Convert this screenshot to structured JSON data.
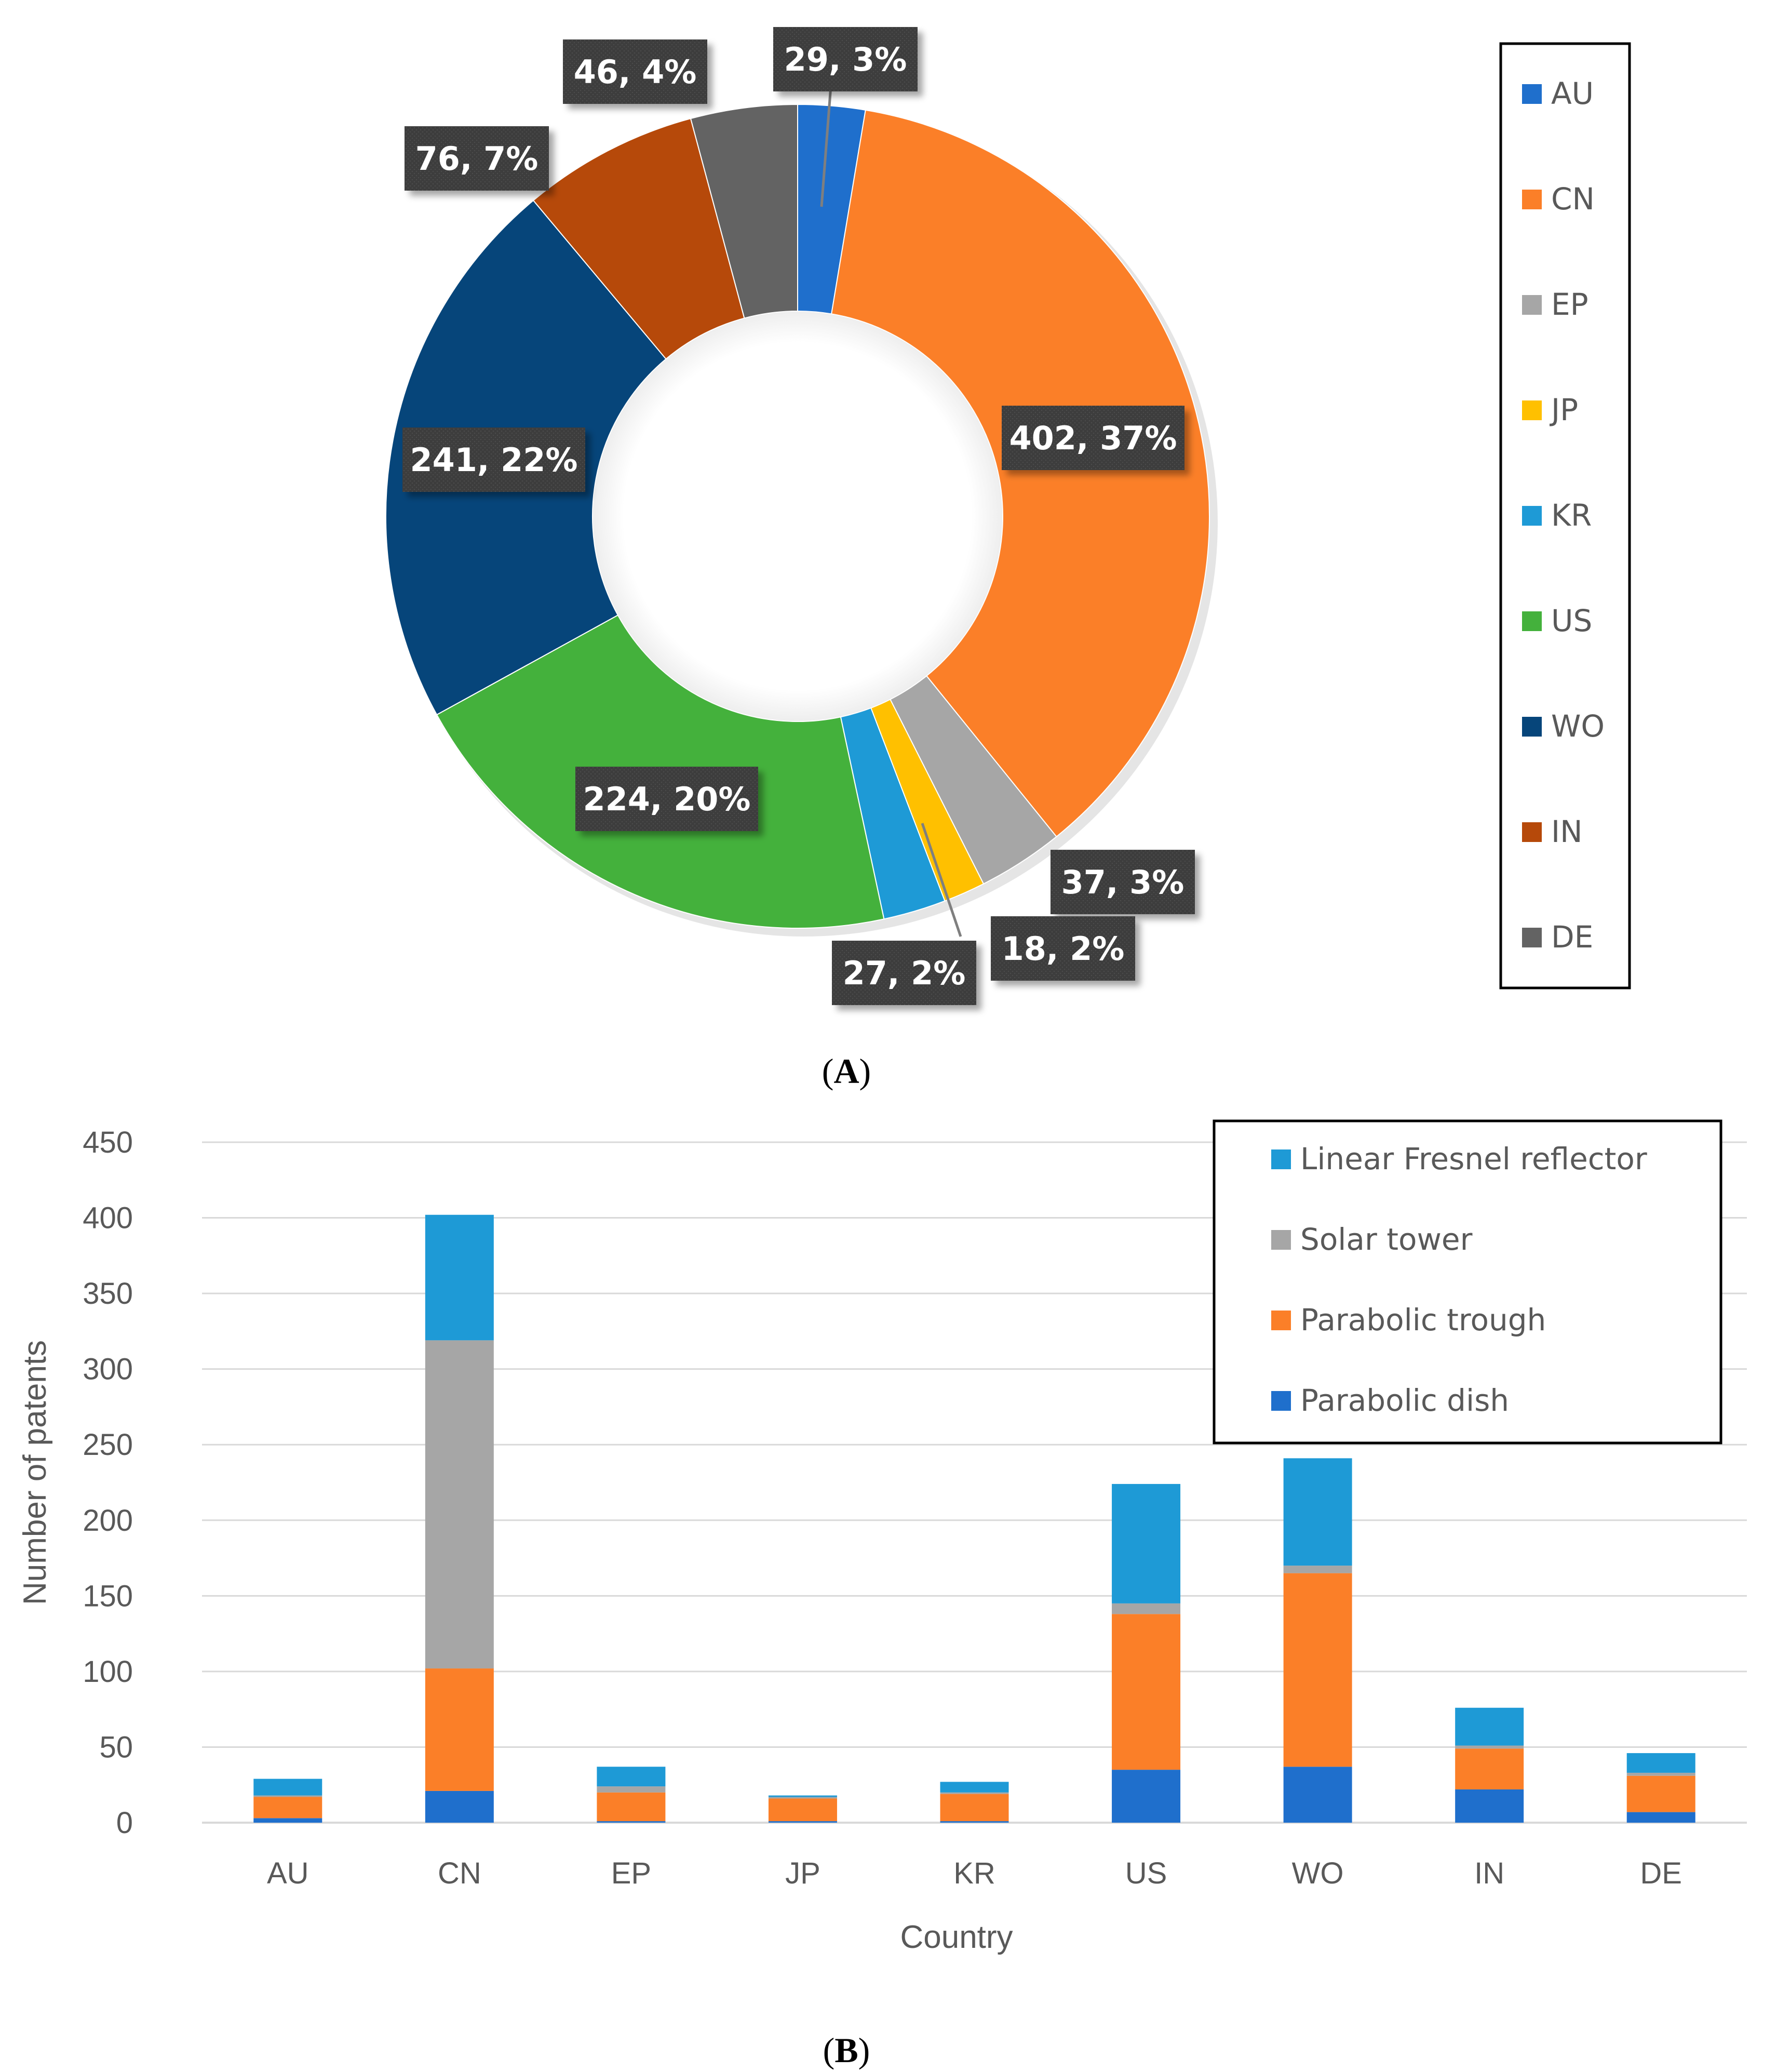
{
  "chart_data": [
    {
      "type": "pie",
      "variant": "donut",
      "panel_label": "A",
      "categories": [
        "AU",
        "CN",
        "EP",
        "JP",
        "KR",
        "US",
        "WO",
        "IN",
        "DE"
      ],
      "values": [
        29,
        402,
        37,
        18,
        27,
        224,
        241,
        76,
        46
      ],
      "percent_labels": [
        "3%",
        "37%",
        "3%",
        "2%",
        "2%",
        "20%",
        "22%",
        "7%",
        "4%"
      ],
      "data_labels": [
        "29, 3%",
        "402, 37%",
        "37, 3%",
        "18, 2%",
        "27, 2%",
        "224, 20%",
        "241, 22%",
        "76, 7%",
        "46, 4%"
      ],
      "colors": [
        "#1f6fcc",
        "#fb7f28",
        "#a6a6a6",
        "#ffc000",
        "#1e9ad6",
        "#44b13c",
        "#06457a",
        "#b6490a",
        "#636363"
      ],
      "legend_placement": "right"
    },
    {
      "type": "bar",
      "stacked": true,
      "panel_label": "B",
      "categories": [
        "AU",
        "CN",
        "EP",
        "JP",
        "KR",
        "US",
        "WO",
        "IN",
        "DE"
      ],
      "series": [
        {
          "name": "Parabolic dish",
          "color": "#1f6fcc",
          "values": [
            3,
            21,
            1,
            1,
            1,
            35,
            37,
            22,
            7
          ]
        },
        {
          "name": "Parabolic trough",
          "color": "#fb7f28",
          "values": [
            14,
            81,
            19,
            15,
            18,
            103,
            128,
            27,
            24
          ]
        },
        {
          "name": "Solar tower",
          "color": "#a6a6a6",
          "values": [
            1,
            217,
            4,
            1,
            1,
            7,
            5,
            2,
            2
          ]
        },
        {
          "name": "Linear Fresnel reflector",
          "color": "#1e9ad6",
          "values": [
            11,
            83,
            13,
            1,
            7,
            79,
            71,
            25,
            13
          ]
        }
      ],
      "legend_order": [
        "Linear Fresnel reflector",
        "Solar tower",
        "Parabolic trough",
        "Parabolic dish"
      ],
      "xlabel": "Country",
      "ylabel": "Number of patents",
      "ylim": [
        0,
        450
      ],
      "yticks": [
        "0",
        "50",
        "100",
        "150",
        "200",
        "250",
        "300",
        "350",
        "400",
        "450"
      ],
      "grid": true,
      "legend_placement": "top-right"
    }
  ]
}
